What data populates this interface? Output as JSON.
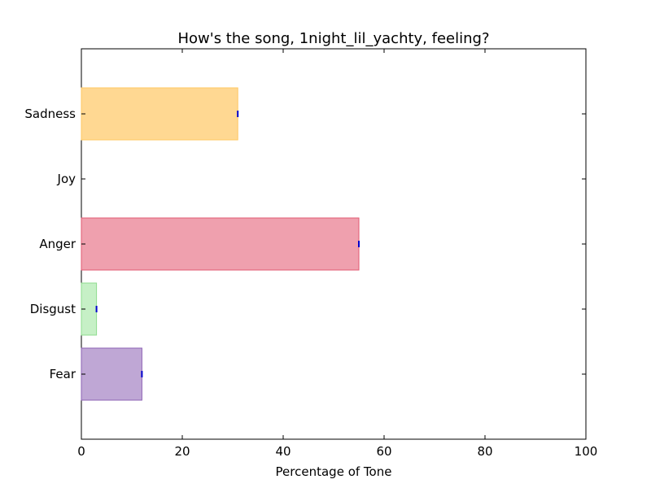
{
  "chart_data": {
    "type": "bar",
    "orientation": "horizontal",
    "title": "How's the song, 1night_lil_yachty, feeling?",
    "xlabel": "Percentage of Tone",
    "ylabel": "",
    "xlim": [
      0,
      100
    ],
    "xticks": [
      0,
      20,
      40,
      60,
      80,
      100
    ],
    "grid": false,
    "categories": [
      "Fear",
      "Disgust",
      "Anger",
      "Joy",
      "Sadness"
    ],
    "values": [
      12,
      3,
      55,
      0,
      31
    ],
    "colors": [
      "#a482c3",
      "#aee9ae",
      "#e8788c",
      "#ffd27e",
      "#ffc864"
    ],
    "edge_colors": [
      "#8e63b5",
      "#8fdc8f",
      "#e05a72",
      "#ffc864",
      "#ffc864"
    ],
    "marker_color": "#0000cc"
  }
}
